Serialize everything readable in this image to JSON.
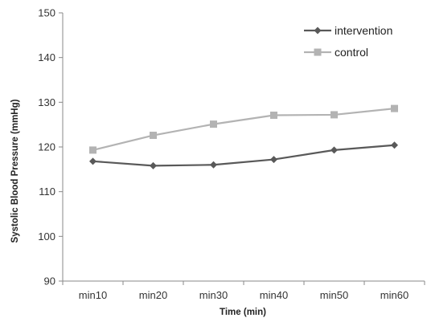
{
  "chart_data": {
    "type": "line",
    "title": "",
    "xlabel": "Time (min)",
    "ylabel": "Systolic Blood Pressure (mmHg)",
    "categories": [
      "min10",
      "min20",
      "min30",
      "min40",
      "min50",
      "min60"
    ],
    "ylim": [
      90,
      150
    ],
    "yticks": [
      90,
      100,
      110,
      120,
      130,
      140,
      150
    ],
    "grid": false,
    "legend_position": "top-right",
    "series": [
      {
        "name": "intervention",
        "marker": "diamond",
        "color": "#595959",
        "values": [
          116.8,
          115.8,
          116.0,
          117.2,
          119.3,
          120.4
        ]
      },
      {
        "name": "control",
        "marker": "square",
        "color": "#b3b3b3",
        "values": [
          119.3,
          122.6,
          125.1,
          127.1,
          127.2,
          128.6
        ]
      }
    ]
  }
}
